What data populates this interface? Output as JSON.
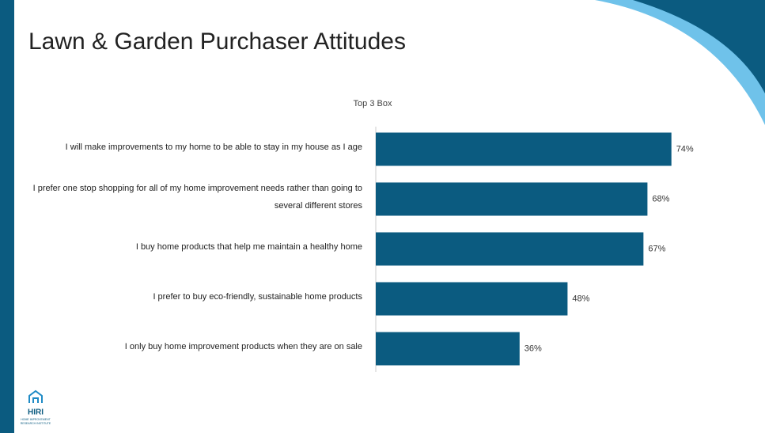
{
  "title": "Lawn & Garden Purchaser Attitudes",
  "logo": {
    "name": "HIRI",
    "tagline": [
      "HOME IMPROVEMENT",
      "RESEARCH INSTITUTE"
    ]
  },
  "chart_data": {
    "type": "bar",
    "orientation": "horizontal",
    "subtitle": "Top 3 Box",
    "categories": [
      "I will make improvements to my home to be able to stay in my house as I age",
      "I prefer one stop shopping for all of my home improvement needs rather than going to several different stores",
      "I buy home products that help me maintain a healthy home",
      "I prefer to buy eco-friendly, sustainable home products",
      "I only buy home improvement products when they are on sale"
    ],
    "values": [
      74,
      68,
      67,
      48,
      36
    ],
    "value_labels": [
      "74%",
      "68%",
      "67%",
      "48%",
      "36%"
    ],
    "color": "#0b5b80",
    "xlim": [
      0,
      100
    ]
  }
}
